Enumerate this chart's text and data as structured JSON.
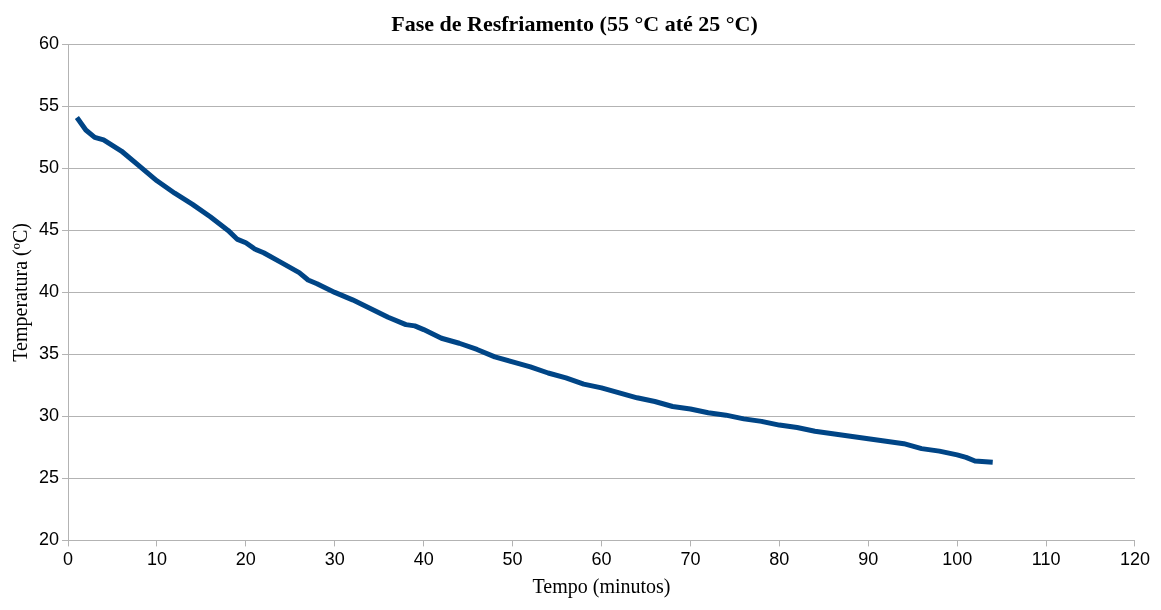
{
  "chart_data": {
    "type": "line",
    "title": "Fase de Resfriamento (55 °C até 25 °C)",
    "xlabel": "Tempo (minutos)",
    "ylabel": "Temperatura (ºC)",
    "x": [
      1,
      2,
      3,
      4,
      6,
      8,
      10,
      12,
      14,
      16,
      18,
      19,
      20,
      21,
      22,
      24,
      26,
      27,
      28,
      30,
      32,
      34,
      36,
      38,
      39,
      40,
      42,
      44,
      46,
      48,
      50,
      52,
      54,
      56,
      58,
      60,
      62,
      64,
      66,
      68,
      70,
      72,
      74,
      76,
      78,
      80,
      82,
      84,
      86,
      88,
      90,
      92,
      94,
      96,
      98,
      100,
      101,
      102,
      104
    ],
    "series": [
      {
        "color": "#004586",
        "values": [
          54.1,
          53.1,
          52.5,
          52.3,
          51.4,
          50.2,
          49.0,
          48.0,
          47.1,
          46.1,
          45.0,
          44.3,
          44.0,
          43.5,
          43.2,
          42.4,
          41.6,
          41.0,
          40.7,
          40.0,
          39.4,
          38.7,
          38.0,
          37.4,
          37.3,
          37.0,
          36.3,
          35.9,
          35.4,
          34.8,
          34.4,
          34.0,
          33.5,
          33.1,
          32.6,
          32.3,
          31.9,
          31.5,
          31.2,
          30.8,
          30.6,
          30.3,
          30.1,
          29.8,
          29.6,
          29.3,
          29.1,
          28.8,
          28.6,
          28.4,
          28.2,
          28.0,
          27.8,
          27.4,
          27.2,
          26.9,
          26.7,
          26.4,
          26.3
        ]
      }
    ],
    "xlim": [
      0,
      120
    ],
    "xticks": [
      0,
      10,
      20,
      30,
      40,
      50,
      60,
      70,
      80,
      90,
      100,
      110,
      120
    ],
    "ylim": [
      20,
      60
    ],
    "yticks": [
      20,
      25,
      30,
      35,
      40,
      45,
      50,
      55,
      60
    ],
    "grid": "y",
    "legend": false,
    "marker": "none",
    "line_style": "solid"
  }
}
